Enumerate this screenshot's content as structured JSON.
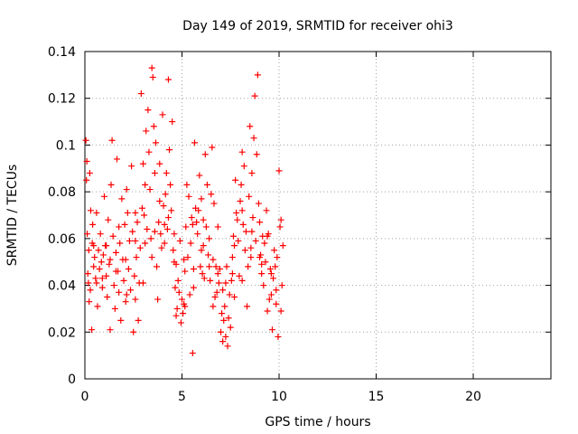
{
  "chart_data": {
    "type": "scatter",
    "title": "Day 149 of 2019, SRMTID for receiver ohi3",
    "xlabel": "GPS time / hours",
    "ylabel": "SRMTID / TECUs",
    "xlim": [
      0,
      24
    ],
    "ylim": [
      0,
      0.14
    ],
    "xticks": [
      0,
      5,
      10,
      15,
      20
    ],
    "xtick_labels": [
      "0",
      "5",
      "10",
      "15",
      "20"
    ],
    "yticks": [
      0,
      0.02,
      0.04,
      0.06,
      0.08,
      0.1,
      0.12,
      0.14
    ],
    "ytick_labels": [
      "0",
      "0.02",
      "0.04",
      "0.06",
      "0.08",
      "0.1",
      "0.12",
      "0.14"
    ],
    "grid": true,
    "marker": "plus",
    "marker_color": "#ff0000",
    "series": [
      {
        "name": "SRMTID",
        "points": [
          [
            0.05,
            0.102
          ],
          [
            0.08,
            0.085
          ],
          [
            0.1,
            0.093
          ],
          [
            0.12,
            0.062
          ],
          [
            0.15,
            0.045
          ],
          [
            0.18,
            0.041
          ],
          [
            0.2,
            0.055
          ],
          [
            0.22,
            0.033
          ],
          [
            0.25,
            0.088
          ],
          [
            0.28,
            0.038
          ],
          [
            0.3,
            0.072
          ],
          [
            0.35,
            0.021
          ],
          [
            0.38,
            0.058
          ],
          [
            0.4,
            0.066
          ],
          [
            0.45,
            0.048
          ],
          [
            0.5,
            0.052
          ],
          [
            0.55,
            0.043
          ],
          [
            0.6,
            0.071
          ],
          [
            0.65,
            0.031
          ],
          [
            0.7,
            0.055
          ],
          [
            0.75,
            0.047
          ],
          [
            0.8,
            0.062
          ],
          [
            0.85,
            0.05
          ],
          [
            0.9,
            0.039
          ],
          [
            0.95,
            0.053
          ],
          [
            1.0,
            0.078
          ],
          [
            1.05,
            0.057
          ],
          [
            1.1,
            0.044
          ],
          [
            1.15,
            0.035
          ],
          [
            1.2,
            0.068
          ],
          [
            1.25,
            0.049
          ],
          [
            1.3,
            0.021
          ],
          [
            1.35,
            0.083
          ],
          [
            1.4,
            0.102
          ],
          [
            1.45,
            0.061
          ],
          [
            1.5,
            0.04
          ],
          [
            1.55,
            0.03
          ],
          [
            1.6,
            0.054
          ],
          [
            1.65,
            0.094
          ],
          [
            1.7,
            0.046
          ],
          [
            1.75,
            0.037
          ],
          [
            1.8,
            0.058
          ],
          [
            1.85,
            0.025
          ],
          [
            1.9,
            0.077
          ],
          [
            1.95,
            0.051
          ],
          [
            2.0,
            0.042
          ],
          [
            2.05,
            0.066
          ],
          [
            2.1,
            0.033
          ],
          [
            2.15,
            0.081
          ],
          [
            2.2,
            0.071
          ],
          [
            2.25,
            0.047
          ],
          [
            2.3,
            0.059
          ],
          [
            2.35,
            0.038
          ],
          [
            2.4,
            0.091
          ],
          [
            2.45,
            0.063
          ],
          [
            2.5,
            0.02
          ],
          [
            2.55,
            0.044
          ],
          [
            2.6,
            0.034
          ],
          [
            2.65,
            0.052
          ],
          [
            2.7,
            0.067
          ],
          [
            2.75,
            0.025
          ],
          [
            2.8,
            0.041
          ],
          [
            2.85,
            0.056
          ],
          [
            2.9,
            0.122
          ],
          [
            2.95,
            0.073
          ],
          [
            3.0,
            0.092
          ],
          [
            3.05,
            0.07
          ],
          [
            3.1,
            0.083
          ],
          [
            3.15,
            0.106
          ],
          [
            3.2,
            0.064
          ],
          [
            3.25,
            0.115
          ],
          [
            3.3,
            0.097
          ],
          [
            3.35,
            0.081
          ],
          [
            3.4,
            0.06
          ],
          [
            3.45,
            0.133
          ],
          [
            3.5,
            0.129
          ],
          [
            3.55,
            0.108
          ],
          [
            3.6,
            0.088
          ],
          [
            3.65,
            0.101
          ],
          [
            3.7,
            0.048
          ],
          [
            3.75,
            0.034
          ],
          [
            3.8,
            0.067
          ],
          [
            3.85,
            0.092
          ],
          [
            3.9,
            0.062
          ],
          [
            3.95,
            0.056
          ],
          [
            4.0,
            0.113
          ],
          [
            4.05,
            0.074
          ],
          [
            4.1,
            0.058
          ],
          [
            4.15,
            0.079
          ],
          [
            4.2,
            0.088
          ],
          [
            4.25,
            0.064
          ],
          [
            4.3,
            0.128
          ],
          [
            4.35,
            0.098
          ],
          [
            4.4,
            0.083
          ],
          [
            4.45,
            0.072
          ],
          [
            4.5,
            0.11
          ],
          [
            4.55,
            0.055
          ],
          [
            4.6,
            0.05
          ],
          [
            4.65,
            0.039
          ],
          [
            4.7,
            0.027
          ],
          [
            4.75,
            0.03
          ],
          [
            4.8,
            0.042
          ],
          [
            4.85,
            0.037
          ],
          [
            4.9,
            0.059
          ],
          [
            4.95,
            0.024
          ],
          [
            5.0,
            0.034
          ],
          [
            5.05,
            0.028
          ],
          [
            5.1,
            0.032
          ],
          [
            5.15,
            0.046
          ],
          [
            5.2,
            0.065
          ],
          [
            5.25,
            0.083
          ],
          [
            5.3,
            0.052
          ],
          [
            5.35,
            0.078
          ],
          [
            5.4,
            0.036
          ],
          [
            5.45,
            0.058
          ],
          [
            5.5,
            0.069
          ],
          [
            5.55,
            0.011
          ],
          [
            5.6,
            0.039
          ],
          [
            5.65,
            0.101
          ],
          [
            5.7,
            0.073
          ],
          [
            5.75,
            0.067
          ],
          [
            5.8,
            0.062
          ],
          [
            5.85,
            0.072
          ],
          [
            5.9,
            0.087
          ],
          [
            5.95,
            0.048
          ],
          [
            6.0,
            0.055
          ],
          [
            6.05,
            0.045
          ],
          [
            6.1,
            0.057
          ],
          [
            6.15,
            0.043
          ],
          [
            6.2,
            0.096
          ],
          [
            6.25,
            0.065
          ],
          [
            6.3,
            0.083
          ],
          [
            6.35,
            0.053
          ],
          [
            6.4,
            0.06
          ],
          [
            6.45,
            0.042
          ],
          [
            6.5,
            0.079
          ],
          [
            6.55,
            0.099
          ],
          [
            6.6,
            0.051
          ],
          [
            6.65,
            0.075
          ],
          [
            6.7,
            0.035
          ],
          [
            6.75,
            0.048
          ],
          [
            6.8,
            0.037
          ],
          [
            6.85,
            0.065
          ],
          [
            6.9,
            0.041
          ],
          [
            6.95,
            0.047
          ],
          [
            7.0,
            0.02
          ],
          [
            7.05,
            0.028
          ],
          [
            7.1,
            0.016
          ],
          [
            7.15,
            0.025
          ],
          [
            7.2,
            0.031
          ],
          [
            7.25,
            0.018
          ],
          [
            7.3,
            0.048
          ],
          [
            7.35,
            0.014
          ],
          [
            7.4,
            0.026
          ],
          [
            7.45,
            0.036
          ],
          [
            7.5,
            0.022
          ],
          [
            7.55,
            0.042
          ],
          [
            7.6,
            0.052
          ],
          [
            7.65,
            0.061
          ],
          [
            7.7,
            0.035
          ],
          [
            7.75,
            0.085
          ],
          [
            7.8,
            0.071
          ],
          [
            7.85,
            0.068
          ],
          [
            7.9,
            0.059
          ],
          [
            7.95,
            0.044
          ],
          [
            8.0,
            0.076
          ],
          [
            8.05,
            0.083
          ],
          [
            8.1,
            0.097
          ],
          [
            8.15,
            0.066
          ],
          [
            8.2,
            0.091
          ],
          [
            8.25,
            0.055
          ],
          [
            8.3,
            0.063
          ],
          [
            8.35,
            0.031
          ],
          [
            8.4,
            0.048
          ],
          [
            8.45,
            0.078
          ],
          [
            8.5,
            0.108
          ],
          [
            8.55,
            0.052
          ],
          [
            8.6,
            0.088
          ],
          [
            8.65,
            0.069
          ],
          [
            8.7,
            0.103
          ],
          [
            8.75,
            0.121
          ],
          [
            8.8,
            0.059
          ],
          [
            8.85,
            0.096
          ],
          [
            8.9,
            0.13
          ],
          [
            8.95,
            0.075
          ],
          [
            9.0,
            0.067
          ],
          [
            9.05,
            0.053
          ],
          [
            9.1,
            0.045
          ],
          [
            9.15,
            0.061
          ],
          [
            9.2,
            0.04
          ],
          [
            9.25,
            0.058
          ],
          [
            9.3,
            0.05
          ],
          [
            9.35,
            0.072
          ],
          [
            9.4,
            0.029
          ],
          [
            9.45,
            0.062
          ],
          [
            9.5,
            0.034
          ],
          [
            9.55,
            0.047
          ],
          [
            9.6,
            0.045
          ],
          [
            9.65,
            0.021
          ],
          [
            9.7,
            0.043
          ],
          [
            9.75,
            0.055
          ],
          [
            9.8,
            0.048
          ],
          [
            9.85,
            0.038
          ],
          [
            9.9,
            0.052
          ],
          [
            9.95,
            0.018
          ],
          [
            10.0,
            0.089
          ],
          [
            10.05,
            0.065
          ],
          [
            10.1,
            0.068
          ],
          [
            10.15,
            0.04
          ],
          [
            10.2,
            0.057
          ],
          [
            0.45,
            0.057
          ],
          [
            0.9,
            0.043
          ],
          [
            1.3,
            0.051
          ],
          [
            1.75,
            0.065
          ],
          [
            2.15,
            0.036
          ],
          [
            2.6,
            0.059
          ],
          [
            3.0,
            0.041
          ],
          [
            3.45,
            0.052
          ],
          [
            3.85,
            0.076
          ],
          [
            4.3,
            0.069
          ],
          [
            4.7,
            0.049
          ],
          [
            5.15,
            0.031
          ],
          [
            5.55,
            0.066
          ],
          [
            6.0,
            0.077
          ],
          [
            6.4,
            0.048
          ],
          [
            6.85,
            0.045
          ],
          [
            7.25,
            0.041
          ],
          [
            7.7,
            0.057
          ],
          [
            8.1,
            0.072
          ],
          [
            8.55,
            0.056
          ],
          [
            9.0,
            0.052
          ],
          [
            9.4,
            0.061
          ],
          [
            9.85,
            0.032
          ],
          [
            0.6,
            0.041
          ],
          [
            1.1,
            0.057
          ],
          [
            1.6,
            0.046
          ],
          [
            2.1,
            0.051
          ],
          [
            2.6,
            0.071
          ],
          [
            3.1,
            0.058
          ],
          [
            3.6,
            0.063
          ],
          [
            4.1,
            0.066
          ],
          [
            4.6,
            0.062
          ],
          [
            5.1,
            0.051
          ],
          [
            5.6,
            0.047
          ],
          [
            6.1,
            0.068
          ],
          [
            6.6,
            0.031
          ],
          [
            7.1,
            0.038
          ],
          [
            7.6,
            0.045
          ],
          [
            8.1,
            0.042
          ],
          [
            8.6,
            0.063
          ],
          [
            9.1,
            0.049
          ],
          [
            9.6,
            0.036
          ],
          [
            10.1,
            0.029
          ]
        ]
      }
    ]
  }
}
